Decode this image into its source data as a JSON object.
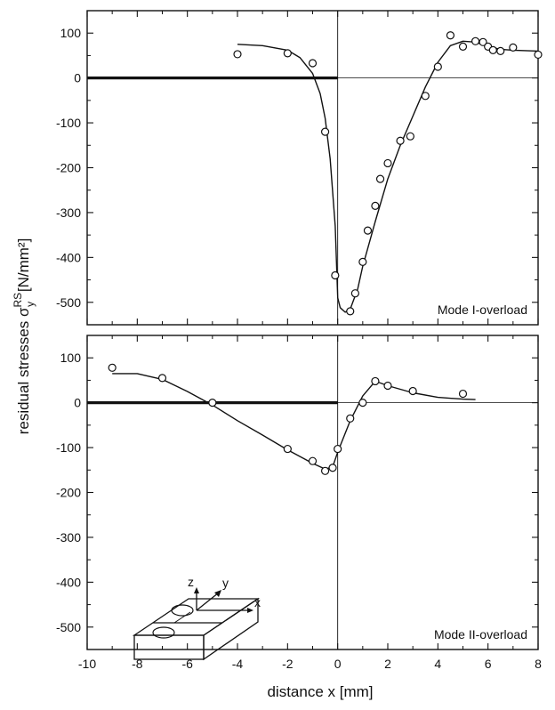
{
  "chart_data": [
    {
      "type": "scatter",
      "label": "Mode I-overload",
      "xlim": [
        -10,
        8
      ],
      "ylim": [
        -550,
        150
      ],
      "x_ticks": [
        -10,
        -8,
        -6,
        -4,
        -2,
        0,
        2,
        4,
        6,
        8
      ],
      "y_ticks": [
        100,
        0,
        -100,
        -200,
        -300,
        -400,
        -500
      ],
      "grid": false,
      "series": [
        {
          "kind": "points",
          "x": [
            -4.0,
            -2.0,
            -1.0,
            -0.5,
            -0.1,
            0.5,
            0.7,
            1.0,
            1.2,
            1.5,
            1.7,
            2.0,
            2.5,
            2.9,
            3.5,
            4.0,
            4.5,
            5.0,
            5.5,
            5.8,
            6.0,
            6.2,
            6.5,
            7.0,
            8.0
          ],
          "y": [
            53,
            55,
            33,
            -120,
            -440,
            -520,
            -480,
            -410,
            -340,
            -285,
            -225,
            -190,
            -140,
            -130,
            -40,
            25,
            95,
            70,
            82,
            80,
            70,
            62,
            60,
            68,
            52
          ]
        },
        {
          "kind": "curve",
          "x": [
            -4.0,
            -3.0,
            -2.0,
            -1.5,
            -1.0,
            -0.7,
            -0.5,
            -0.3,
            -0.1,
            0.0,
            0.1,
            0.3,
            0.5,
            0.8,
            1.0,
            1.5,
            2.0,
            2.5,
            3.0,
            3.5,
            4.0,
            4.5,
            5.0,
            5.5,
            6.0,
            6.5,
            7.0,
            8.0
          ],
          "y": [
            75,
            72,
            62,
            45,
            10,
            -35,
            -90,
            -180,
            -330,
            -490,
            -512,
            -522,
            -515,
            -470,
            -420,
            -320,
            -225,
            -150,
            -85,
            -20,
            35,
            72,
            82,
            80,
            70,
            64,
            62,
            60
          ]
        }
      ],
      "mean_line": {
        "x": [
          -10,
          0
        ],
        "y": [
          0,
          0
        ]
      }
    },
    {
      "type": "scatter",
      "label": "Mode II-overload",
      "xlim": [
        -10,
        8
      ],
      "ylim": [
        -550,
        150
      ],
      "x_ticks": [
        -10,
        -8,
        -6,
        -4,
        -2,
        0,
        2,
        4,
        6,
        8
      ],
      "x_tick_labels": [
        "-10",
        "-8",
        "-6",
        "-4",
        "-2",
        "0",
        "2",
        "4",
        "6",
        "8"
      ],
      "y_ticks": [
        100,
        0,
        -100,
        -200,
        -300,
        -400,
        -500
      ],
      "grid": false,
      "series": [
        {
          "kind": "points",
          "x": [
            -9.0,
            -7.0,
            -5.0,
            -2.0,
            -1.0,
            -0.5,
            -0.2,
            0.0,
            0.5,
            1.0,
            1.5,
            2.0,
            3.0,
            5.0
          ],
          "y": [
            78,
            55,
            0,
            -103,
            -130,
            -152,
            -145,
            -103,
            -35,
            0,
            48,
            38,
            26,
            20
          ]
        },
        {
          "kind": "curve",
          "x": [
            -9.0,
            -8.0,
            -7.0,
            -6.0,
            -5.0,
            -4.0,
            -3.0,
            -2.0,
            -1.0,
            -0.5,
            -0.2,
            0.0,
            0.5,
            1.0,
            1.5,
            2.0,
            3.0,
            4.0,
            5.0,
            5.5
          ],
          "y": [
            65,
            65,
            52,
            25,
            -5,
            -40,
            -72,
            -105,
            -135,
            -148,
            -143,
            -110,
            -40,
            15,
            48,
            38,
            22,
            12,
            8,
            7
          ]
        }
      ],
      "mean_line": {
        "x": [
          -10,
          0
        ],
        "y": [
          0,
          0
        ]
      }
    }
  ],
  "axes_text": {
    "ylabel": "residual stresses σ",
    "ylabel_sup": "RS",
    "ylabel_sub": "y",
    "ylabel_unit": " [N/mm²]",
    "xlabel": "distance  x  [mm]"
  },
  "inset": {
    "axis_z": "z",
    "axis_y": "y",
    "axis_x": "x"
  }
}
